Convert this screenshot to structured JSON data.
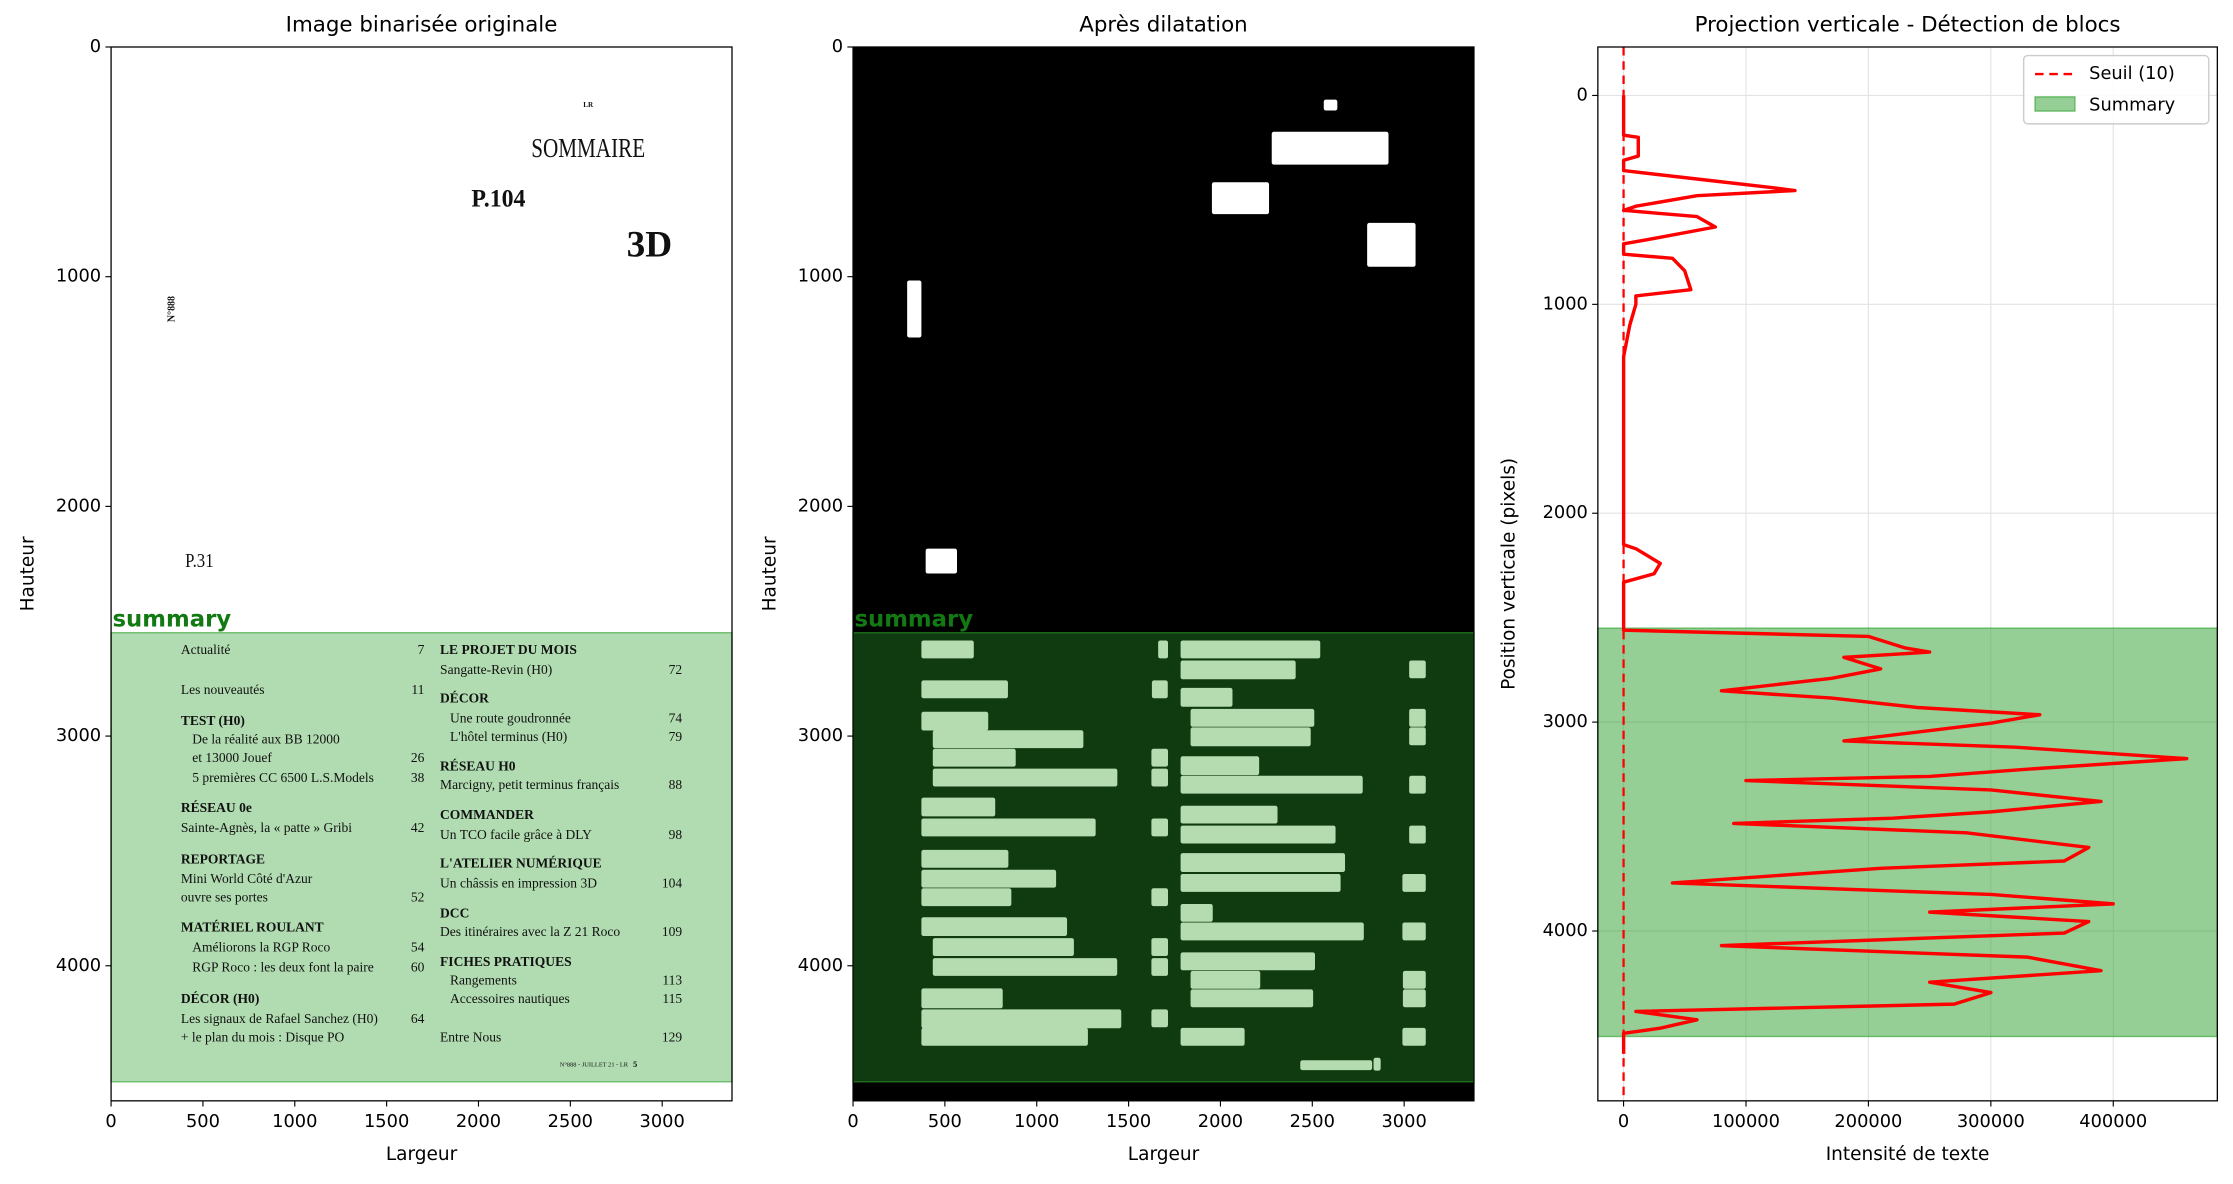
{
  "chart_data": [
    {
      "type": "image",
      "title": "Image binarisée originale",
      "xlabel": "Largeur",
      "ylabel": "Hauteur",
      "xlim": [
        0,
        3380
      ],
      "ylim": [
        4588,
        0
      ],
      "xticks": [
        0,
        500,
        1000,
        1500,
        2000,
        2500,
        3000
      ],
      "yticks": [
        0,
        1000,
        2000,
        3000,
        4000
      ],
      "background": "#ffffff",
      "block": {
        "label": "summary",
        "ylim": [
          2550,
          4505
        ],
        "color": "#2ca02c"
      },
      "page_texts": [
        "LR",
        "SOMMAIRE",
        "P.104",
        "3D",
        "N°888",
        "P.31",
        "Actualité",
        "7",
        "Les nouveautés",
        "11",
        "TEST (H0)",
        "De la réalité aux BB 12000",
        "et 13000 Jouef",
        "26",
        "5 premières CC 6500 L.S.Models",
        "38",
        "RÉSEAU 0e",
        "Sainte-Agnès, la « patte » Gribi",
        "42",
        "REPORTAGE",
        "Mini World Côté d'Azur",
        "ouvre ses portes",
        "52",
        "MATÉRIEL ROULANT",
        "Améliorons la RGP Roco",
        "54",
        "RGP Roco : les deux font la paire",
        "60",
        "DÉCOR (H0)",
        "Les signaux de Rafael Sanchez (H0)",
        "64",
        "+ le plan du mois : Disque PO",
        "LE PROJET DU MOIS",
        "Sangatte-Revin (H0)",
        "72",
        "DÉCOR",
        "Une route goudronnée",
        "74",
        "L'hôtel terminus (H0)",
        "79",
        "RÉSEAU H0",
        "Marcigny, petit terminus français",
        "88",
        "COMMANDER",
        "Un TCO facile grâce à DLY",
        "98",
        "L'ATELIER NUMÉRIQUE",
        "Un châssis en impression 3D",
        "104",
        "DCC",
        "Des itinéraires avec la Z 21 Roco",
        "109",
        "FICHES PRATIQUES",
        "Rangements",
        "113",
        "Accessoires nautiques",
        "115",
        "Entre Nous",
        "129",
        "N°888 - JUILLET 21 - LR",
        "5"
      ]
    },
    {
      "type": "image",
      "title": "Après dilatation",
      "xlabel": "Largeur",
      "ylabel": "Hauteur",
      "xlim": [
        0,
        3380
      ],
      "ylim": [
        4588,
        0
      ],
      "xticks": [
        0,
        500,
        1000,
        1500,
        2000,
        2500,
        3000
      ],
      "yticks": [
        0,
        1000,
        2000,
        3000,
        4000
      ],
      "background": "#000000",
      "block": {
        "label": "summary",
        "ylim": [
          2550,
          4505
        ],
        "color": "#2ca02c"
      }
    },
    {
      "type": "line",
      "title": "Projection verticale - Détection de blocs",
      "xlabel": "Intensité de texte",
      "ylabel": "Position verticale (pixels)",
      "xlim": [
        -21000,
        485000
      ],
      "ylim": [
        4813,
        -232
      ],
      "xticks": [
        0,
        100000,
        200000,
        300000,
        400000
      ],
      "yticks": [
        0,
        1000,
        2000,
        3000,
        4000
      ],
      "grid": true,
      "legend": "upper right",
      "threshold": {
        "name": "Seuil (10)",
        "value": 10,
        "color": "#ff0000"
      },
      "band": {
        "name": "Summary",
        "range": [
          2550,
          4505
        ],
        "color": "#2ca02c"
      },
      "profile": {
        "color": "#ff0000",
        "positions": [
          0,
          190,
          200,
          290,
          310,
          360,
          400,
          440,
          455,
          480,
          530,
          550,
          580,
          630,
          690,
          710,
          760,
          780,
          840,
          930,
          960,
          1000,
          1100,
          1250,
          2150,
          2170,
          2240,
          2290,
          2330,
          2560,
          2590,
          2645,
          2665,
          2690,
          2745,
          2790,
          2850,
          2885,
          2930,
          2965,
          3005,
          3055,
          3090,
          3120,
          3175,
          3225,
          3260,
          3280,
          3325,
          3380,
          3430,
          3460,
          3485,
          3530,
          3600,
          3665,
          3700,
          3770,
          3825,
          3870,
          3910,
          3955,
          4010,
          4070,
          4125,
          4190,
          4245,
          4295,
          4350,
          4385,
          4425,
          4465,
          4490,
          4588
        ],
        "values": [
          0,
          0,
          12000,
          12000,
          0,
          0,
          60000,
          120000,
          140000,
          60000,
          10000,
          0,
          60000,
          75000,
          20000,
          0,
          0,
          40000,
          50000,
          55000,
          10000,
          10000,
          5000,
          0,
          0,
          10000,
          30000,
          25000,
          0,
          0,
          200000,
          230000,
          250000,
          180000,
          210000,
          170000,
          80000,
          170000,
          240000,
          340000,
          300000,
          230000,
          180000,
          320000,
          460000,
          330000,
          250000,
          100000,
          300000,
          390000,
          300000,
          220000,
          90000,
          280000,
          380000,
          360000,
          210000,
          40000,
          300000,
          400000,
          250000,
          380000,
          360000,
          80000,
          330000,
          390000,
          250000,
          300000,
          270000,
          10000,
          60000,
          30000,
          0,
          0
        ]
      }
    }
  ]
}
